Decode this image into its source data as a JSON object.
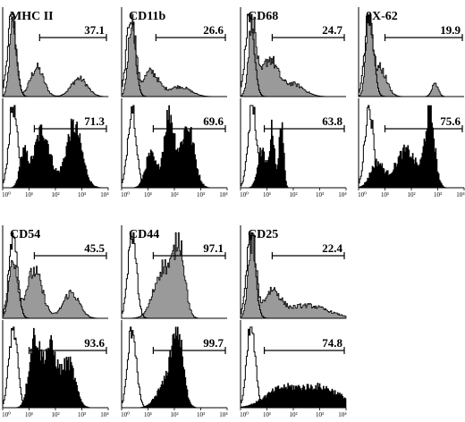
{
  "chart_data": {
    "type": "histogram-grid",
    "x_tick_labels": [
      "10⁰",
      "10¹",
      "10²",
      "10³",
      "10⁴"
    ],
    "x_scale": "log",
    "xlim": [
      1,
      10000
    ],
    "colors": {
      "filled_gray": "#9a9a9a",
      "filled_black": "#000000",
      "outline": "#000000"
    },
    "markers": [
      {
        "marker": "MHC II",
        "stages": [
          {
            "fill": "gray",
            "percent": "37.1",
            "gate": [
              1.4,
              4.0
            ],
            "control_peak": 0.35,
            "peaks": [
              [
                0.4,
                0.9,
                0.13
              ],
              [
                1.3,
                0.35,
                0.25
              ],
              [
                2.9,
                0.22,
                0.3
              ]
            ]
          },
          {
            "fill": "black",
            "percent": "71.3",
            "gate": [
              1.2,
              4.0
            ],
            "control_peak": 0.4,
            "peaks": [
              [
                0.8,
                0.4,
                0.15
              ],
              [
                1.5,
                0.7,
                0.3
              ],
              [
                2.7,
                0.75,
                0.3
              ]
            ]
          }
        ]
      },
      {
        "marker": "CD11b",
        "stages": [
          {
            "fill": "gray",
            "percent": "26.6",
            "gate": [
              1.3,
              4.0
            ],
            "control_peak": 0.35,
            "peaks": [
              [
                0.4,
                0.95,
                0.14
              ],
              [
                1.1,
                0.3,
                0.3
              ],
              [
                2.2,
                0.12,
                0.4
              ]
            ]
          },
          {
            "fill": "black",
            "percent": "69.6",
            "gate": [
              1.2,
              4.0
            ],
            "control_peak": 0.4,
            "peaks": [
              [
                1.1,
                0.4,
                0.2
              ],
              [
                1.8,
                0.9,
                0.2
              ],
              [
                2.5,
                0.75,
                0.25
              ]
            ]
          }
        ]
      },
      {
        "marker": "CD68",
        "stages": [
          {
            "fill": "gray",
            "percent": "24.7",
            "gate": [
              1.2,
              4.0
            ],
            "control_peak": 0.35,
            "peaks": [
              [
                0.45,
                0.9,
                0.14
              ],
              [
                1.1,
                0.45,
                0.3
              ],
              [
                2.0,
                0.15,
                0.4
              ]
            ]
          },
          {
            "fill": "black",
            "percent": "63.8",
            "gate": [
              0.9,
              4.0
            ],
            "control_peak": 0.45,
            "peaks": [
              [
                0.8,
                0.45,
                0.15
              ],
              [
                1.2,
                0.7,
                0.1
              ],
              [
                1.55,
                0.85,
                0.08
              ]
            ]
          }
        ]
      },
      {
        "marker": "0X-62",
        "stages": [
          {
            "fill": "gray",
            "percent": "19.9",
            "gate": [
              1.0,
              4.0
            ],
            "control_peak": 0.4,
            "peaks": [
              [
                0.4,
                0.95,
                0.12
              ],
              [
                0.8,
                0.35,
                0.25
              ],
              [
                2.9,
                0.15,
                0.12
              ]
            ]
          },
          {
            "fill": "black",
            "percent": "75.6",
            "gate": [
              1.0,
              4.0
            ],
            "control_peak": 0.4,
            "peaks": [
              [
                0.7,
                0.3,
                0.25
              ],
              [
                1.8,
                0.45,
                0.4
              ],
              [
                2.7,
                0.9,
                0.18
              ]
            ]
          }
        ]
      },
      {
        "marker": "CD54",
        "stages": [
          {
            "fill": "gray",
            "percent": "45.5",
            "gate": [
              1.2,
              4.0
            ],
            "control_peak": 0.4,
            "peaks": [
              [
                0.4,
                0.7,
                0.15
              ],
              [
                1.2,
                0.55,
                0.3
              ],
              [
                2.6,
                0.3,
                0.3
              ]
            ]
          },
          {
            "fill": "black",
            "percent": "93.6",
            "gate": [
              1.0,
              4.0
            ],
            "control_peak": 0.4,
            "peaks": [
              [
                1.2,
                0.85,
                0.2
              ],
              [
                1.8,
                0.75,
                0.25
              ],
              [
                2.5,
                0.55,
                0.25
              ]
            ]
          }
        ]
      },
      {
        "marker": "CD44",
        "stages": [
          {
            "fill": "gray",
            "percent": "97.1",
            "gate": [
              1.2,
              4.0
            ],
            "control_peak": 0.4,
            "peaks": [
              [
                1.6,
                0.6,
                0.35
              ],
              [
                2.2,
                0.8,
                0.2
              ]
            ]
          },
          {
            "fill": "black",
            "percent": "99.7",
            "gate": [
              1.2,
              4.0
            ],
            "control_peak": 0.4,
            "peaks": [
              [
                2.1,
                0.95,
                0.22
              ],
              [
                1.6,
                0.25,
                0.3
              ]
            ]
          }
        ]
      },
      {
        "marker": "CD25",
        "stages": [
          {
            "fill": "gray",
            "percent": "22.4",
            "gate": [
              1.2,
              4.0
            ],
            "control_peak": 0.4,
            "peaks": [
              [
                0.45,
                0.9,
                0.15
              ],
              [
                1.2,
                0.3,
                0.3
              ],
              [
                2.5,
                0.15,
                0.8
              ]
            ]
          },
          {
            "fill": "black",
            "percent": "74.8",
            "gate": [
              0.9,
              4.0
            ],
            "control_peak": 0.4,
            "peaks": [
              [
                1.5,
                0.2,
                0.6
              ],
              [
                3.0,
                0.25,
                0.8
              ]
            ]
          }
        ]
      }
    ]
  }
}
